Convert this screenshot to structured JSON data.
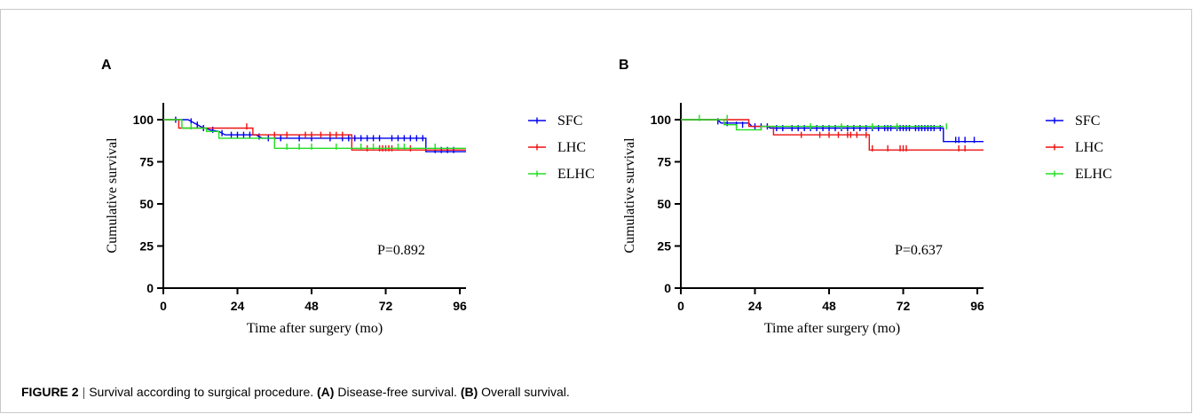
{
  "caption": {
    "label": "FIGURE 2",
    "separator": "|",
    "title": "Survival according to surgical procedure.",
    "a_tag": "(A)",
    "a_text": "Disease-free survival.",
    "b_tag": "(B)",
    "b_text": "Overall survival."
  },
  "chart_data": [
    {
      "type": "line",
      "panel_label": "A",
      "xlabel": "Time after surgery (mo)",
      "ylabel": "Cumulative survival",
      "xlim": [
        0,
        98
      ],
      "ylim": [
        0,
        110
      ],
      "xticks": [
        0,
        24,
        48,
        72,
        96
      ],
      "yticks": [
        0,
        25,
        50,
        75,
        100
      ],
      "annotation": "P=0.892",
      "legend_position": "right",
      "series": [
        {
          "name": "SFC",
          "color": "#0000ee",
          "steps": [
            [
              0,
              100
            ],
            [
              8,
              100
            ],
            [
              10,
              98
            ],
            [
              12,
              96
            ],
            [
              15,
              94
            ],
            [
              18,
              93
            ],
            [
              20,
              91
            ],
            [
              30,
              91
            ],
            [
              32,
              89
            ],
            [
              85,
              89
            ],
            [
              85,
              81
            ],
            [
              98,
              81
            ]
          ],
          "censors": [
            [
              4,
              100
            ],
            [
              9,
              99
            ],
            [
              11,
              97
            ],
            [
              13,
              95
            ],
            [
              16,
              94
            ],
            [
              19,
              92
            ],
            [
              22,
              91
            ],
            [
              24,
              91
            ],
            [
              26,
              91
            ],
            [
              28,
              91
            ],
            [
              31,
              90
            ],
            [
              34,
              89
            ],
            [
              38,
              89
            ],
            [
              44,
              89
            ],
            [
              48,
              89
            ],
            [
              54,
              89
            ],
            [
              58,
              89
            ],
            [
              60,
              89
            ],
            [
              62,
              89
            ],
            [
              64,
              89
            ],
            [
              66,
              89
            ],
            [
              68,
              89
            ],
            [
              70,
              89
            ],
            [
              74,
              89
            ],
            [
              76,
              89
            ],
            [
              78,
              89
            ],
            [
              80,
              89
            ],
            [
              82,
              89
            ],
            [
              84,
              89
            ],
            [
              88,
              82
            ],
            [
              90,
              82
            ],
            [
              92,
              82
            ],
            [
              94,
              82
            ]
          ]
        },
        {
          "name": "LHC",
          "color": "#ee1111",
          "steps": [
            [
              0,
              100
            ],
            [
              5,
              100
            ],
            [
              5,
              95
            ],
            [
              29,
              95
            ],
            [
              29,
              91
            ],
            [
              61,
              91
            ],
            [
              61,
              82
            ],
            [
              98,
              82
            ]
          ],
          "censors": [
            [
              27,
              96
            ],
            [
              36,
              91
            ],
            [
              40,
              91
            ],
            [
              46,
              91
            ],
            [
              48,
              91
            ],
            [
              51,
              91
            ],
            [
              54,
              91
            ],
            [
              56,
              91
            ],
            [
              58,
              91
            ],
            [
              66,
              83
            ],
            [
              70,
              83
            ],
            [
              71,
              83
            ],
            [
              72,
              83
            ],
            [
              73,
              83
            ],
            [
              74,
              83
            ],
            [
              80,
              83
            ]
          ]
        },
        {
          "name": "ELHC",
          "color": "#22dd22",
          "steps": [
            [
              0,
              100
            ],
            [
              6,
              100
            ],
            [
              6,
              95
            ],
            [
              14,
              95
            ],
            [
              14,
              93
            ],
            [
              18,
              93
            ],
            [
              18,
              89
            ],
            [
              36,
              89
            ],
            [
              36,
              83
            ],
            [
              98,
              83
            ]
          ],
          "censors": [
            [
              9,
              96
            ],
            [
              40,
              84
            ],
            [
              44,
              84
            ],
            [
              48,
              84
            ],
            [
              56,
              84
            ],
            [
              64,
              84
            ],
            [
              68,
              84
            ],
            [
              76,
              84
            ],
            [
              78,
              84
            ],
            [
              88,
              84
            ]
          ]
        }
      ]
    },
    {
      "type": "line",
      "panel_label": "B",
      "xlabel": "Time after surgery (mo)",
      "ylabel": "Cumulative survival",
      "xlim": [
        0,
        98
      ],
      "ylim": [
        0,
        110
      ],
      "xticks": [
        0,
        24,
        48,
        72,
        96
      ],
      "yticks": [
        0,
        25,
        50,
        75,
        100
      ],
      "annotation": "P=0.637",
      "legend_position": "right",
      "series": [
        {
          "name": "SFC",
          "color": "#0000ee",
          "steps": [
            [
              0,
              100
            ],
            [
              12,
              100
            ],
            [
              13,
              98
            ],
            [
              22,
              98
            ],
            [
              23,
              96
            ],
            [
              28,
              96
            ],
            [
              29,
              95
            ],
            [
              85,
              95
            ],
            [
              85,
              87
            ],
            [
              98,
              87
            ]
          ],
          "censors": [
            [
              12,
              99
            ],
            [
              15,
              98
            ],
            [
              18,
              97
            ],
            [
              20,
              97
            ],
            [
              24,
              96
            ],
            [
              26,
              96
            ],
            [
              28,
              96
            ],
            [
              31,
              95
            ],
            [
              33,
              95
            ],
            [
              36,
              95
            ],
            [
              38,
              95
            ],
            [
              40,
              95
            ],
            [
              42,
              95
            ],
            [
              44,
              95
            ],
            [
              46,
              95
            ],
            [
              48,
              95
            ],
            [
              50,
              95
            ],
            [
              52,
              95
            ],
            [
              54,
              95
            ],
            [
              56,
              95
            ],
            [
              58,
              95
            ],
            [
              60,
              95
            ],
            [
              62,
              95
            ],
            [
              64,
              95
            ],
            [
              66,
              95
            ],
            [
              67,
              95
            ],
            [
              68,
              95
            ],
            [
              70,
              95
            ],
            [
              71,
              95
            ],
            [
              72,
              95
            ],
            [
              73,
              95
            ],
            [
              74,
              95
            ],
            [
              76,
              95
            ],
            [
              77,
              95
            ],
            [
              78,
              95
            ],
            [
              79,
              95
            ],
            [
              80,
              95
            ],
            [
              81,
              95
            ],
            [
              82,
              95
            ],
            [
              84,
              95
            ],
            [
              89,
              88
            ],
            [
              90,
              88
            ],
            [
              92,
              88
            ],
            [
              95,
              88
            ]
          ]
        },
        {
          "name": "LHC",
          "color": "#ee1111",
          "steps": [
            [
              0,
              100
            ],
            [
              22,
              100
            ],
            [
              22,
              96
            ],
            [
              30,
              96
            ],
            [
              30,
              91
            ],
            [
              61,
              91
            ],
            [
              61,
              82
            ],
            [
              98,
              82
            ]
          ],
          "censors": [
            [
              39,
              91
            ],
            [
              45,
              91
            ],
            [
              48,
              91
            ],
            [
              51,
              91
            ],
            [
              54,
              91
            ],
            [
              55,
              91
            ],
            [
              57,
              91
            ],
            [
              60,
              91
            ],
            [
              62,
              83
            ],
            [
              67,
              83
            ],
            [
              71,
              83
            ],
            [
              72,
              83
            ],
            [
              73,
              83
            ],
            [
              90,
              83
            ],
            [
              92,
              83
            ]
          ]
        },
        {
          "name": "ELHC",
          "color": "#22dd22",
          "steps": [
            [
              0,
              100
            ],
            [
              14,
              100
            ],
            [
              14,
              97
            ],
            [
              18,
              97
            ],
            [
              18,
              94
            ],
            [
              26,
              94
            ],
            [
              26,
              96
            ],
            [
              85,
              96
            ]
          ],
          "censors": [
            [
              6,
              101
            ],
            [
              15,
              101
            ],
            [
              42,
              96
            ],
            [
              52,
              96
            ],
            [
              62,
              96
            ],
            [
              70,
              96
            ],
            [
              86,
              96
            ]
          ]
        }
      ]
    }
  ]
}
